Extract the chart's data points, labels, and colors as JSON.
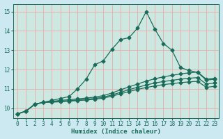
{
  "xlabel": "Humidex (Indice chaleur)",
  "bg_color": "#cce8f0",
  "plot_bg_color": "#cce8e0",
  "grid_color": "#e8aaaa",
  "line_color": "#1a6b5a",
  "xlim": [
    -0.5,
    23.5
  ],
  "ylim": [
    9.5,
    15.4
  ],
  "xticks": [
    0,
    1,
    2,
    3,
    4,
    5,
    6,
    7,
    8,
    9,
    10,
    11,
    12,
    13,
    14,
    15,
    16,
    17,
    18,
    19,
    20,
    21,
    22,
    23
  ],
  "yticks": [
    10,
    11,
    12,
    13,
    14,
    15
  ],
  "s1_x": [
    0,
    1,
    2,
    3,
    4,
    5,
    6,
    7,
    8,
    9,
    10,
    11,
    12,
    13,
    14,
    15,
    16,
    17,
    18,
    19,
    20,
    21,
    22,
    23
  ],
  "s1_y": [
    9.7,
    9.85,
    10.2,
    10.3,
    10.4,
    10.5,
    10.6,
    11.0,
    11.5,
    12.25,
    12.45,
    13.05,
    13.55,
    13.65,
    14.15,
    15.0,
    14.1,
    13.35,
    13.0,
    12.1,
    11.95,
    11.85,
    11.45,
    11.5
  ],
  "s2_x": [
    0,
    1,
    2,
    3,
    4,
    5,
    6,
    7,
    8,
    9,
    10,
    11,
    12,
    13,
    14,
    15,
    16,
    17,
    18,
    19,
    20,
    21,
    22,
    23
  ],
  "s2_y": [
    9.7,
    9.85,
    10.2,
    10.3,
    10.35,
    10.4,
    10.44,
    10.48,
    10.52,
    10.57,
    10.65,
    10.78,
    10.95,
    11.1,
    11.25,
    11.4,
    11.52,
    11.62,
    11.7,
    11.77,
    11.83,
    11.87,
    11.5,
    11.55
  ],
  "s3_x": [
    0,
    1,
    2,
    3,
    4,
    5,
    6,
    7,
    8,
    9,
    10,
    11,
    12,
    13,
    14,
    15,
    16,
    17,
    18,
    19,
    20,
    21,
    22,
    23
  ],
  "s3_y": [
    9.7,
    9.85,
    10.2,
    10.3,
    10.33,
    10.36,
    10.39,
    10.42,
    10.46,
    10.5,
    10.57,
    10.68,
    10.82,
    10.96,
    11.08,
    11.2,
    11.3,
    11.38,
    11.44,
    11.5,
    11.55,
    11.58,
    11.25,
    11.3
  ],
  "s4_x": [
    0,
    1,
    2,
    3,
    4,
    5,
    6,
    7,
    8,
    9,
    10,
    11,
    12,
    13,
    14,
    15,
    16,
    17,
    18,
    19,
    20,
    21,
    22,
    23
  ],
  "s4_y": [
    9.7,
    9.85,
    10.2,
    10.3,
    10.31,
    10.33,
    10.36,
    10.39,
    10.42,
    10.46,
    10.52,
    10.62,
    10.74,
    10.86,
    10.97,
    11.07,
    11.15,
    11.22,
    11.27,
    11.32,
    11.36,
    11.39,
    11.08,
    11.13
  ]
}
